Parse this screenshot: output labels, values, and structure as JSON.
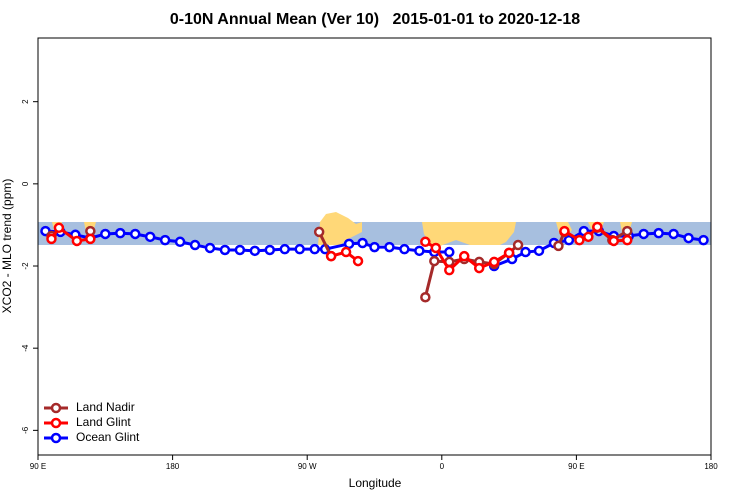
{
  "chart_data": {
    "type": "line",
    "title": "0-10N Annual Mean (Ver 10)   2015-01-01 to 2020-12-18",
    "xlabel": "Longitude",
    "ylabel": "XCO2 - MLO trend (ppm)",
    "xlim": [
      90,
      540
    ],
    "ylim": [
      -6.6,
      3.55
    ],
    "xticks": [
      {
        "value": 90,
        "label": "90 E"
      },
      180,
      {
        "value": 270,
        "label": "90 W"
      },
      {
        "value": 360,
        "label": "0"
      },
      {
        "value": 450,
        "label": "90 E"
      },
      {
        "value": 540,
        "label": "180"
      }
    ],
    "yticks": [
      2,
      0,
      -2,
      -4,
      -6
    ],
    "legend": "bottom-left",
    "series": [
      {
        "name": "Ocean Glint",
        "color": "#0000ff",
        "x": [
          95,
          105,
          115,
          125,
          135,
          145,
          155,
          165,
          175,
          185,
          195,
          205,
          215,
          225,
          235,
          245,
          255,
          265,
          275,
          282,
          298,
          307,
          315,
          325,
          335,
          345,
          355,
          365,
          395,
          407,
          416,
          425,
          435,
          445,
          455,
          465,
          475,
          485,
          495,
          505,
          515,
          525,
          535
        ],
        "values": [
          -1.15,
          -1.17,
          -1.24,
          -1.32,
          -1.22,
          -1.2,
          -1.22,
          -1.29,
          -1.37,
          -1.41,
          -1.49,
          -1.56,
          -1.61,
          -1.61,
          -1.63,
          -1.61,
          -1.59,
          -1.59,
          -1.59,
          -1.59,
          -1.46,
          -1.44,
          -1.54,
          -1.54,
          -1.59,
          -1.63,
          -1.66,
          -1.66,
          -2.0,
          -1.83,
          -1.66,
          -1.63,
          -1.44,
          -1.37,
          -1.15,
          -1.15,
          -1.27,
          -1.27,
          -1.22,
          -1.2,
          -1.22,
          -1.32,
          -1.37
        ]
      },
      {
        "name": "Land Nadir",
        "color": "#a52a2a",
        "x": [
          99,
          125,
          278,
          286,
          349,
          355,
          365,
          375,
          385,
          395,
          405,
          411,
          438,
          442,
          464,
          474,
          484
        ],
        "values": [
          -1.27,
          -1.15,
          -1.17,
          -1.76,
          -2.76,
          -1.88,
          -1.9,
          -1.83,
          -1.9,
          -1.95,
          -1.68,
          -1.49,
          -1.51,
          -1.17,
          -1.07,
          -1.37,
          -1.15
        ]
      },
      {
        "name": "Land Glint",
        "color": "#ff0000",
        "x": [
          99,
          104,
          116,
          125,
          286,
          296,
          304,
          349,
          356,
          365,
          375,
          385,
          395,
          405,
          442,
          452,
          458,
          464,
          475,
          484
        ],
        "values": [
          -1.34,
          -1.07,
          -1.39,
          -1.34,
          -1.76,
          -1.66,
          -1.88,
          -1.41,
          -1.56,
          -2.1,
          -1.76,
          -2.05,
          -1.9,
          -1.68,
          -1.15,
          -1.37,
          -1.29,
          -1.05,
          -1.39,
          -1.37
        ]
      }
    ],
    "legend_order": [
      "Land Nadir",
      "Land Glint",
      "Ocean Glint"
    ]
  }
}
